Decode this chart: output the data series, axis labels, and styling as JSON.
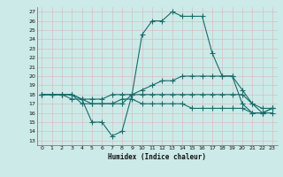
{
  "xlabel": "Humidex (Indice chaleur)",
  "background_color": "#cceae8",
  "grid_color": "#b0d8d4",
  "line_color": "#1a6b6b",
  "xlim": [
    -0.5,
    23.5
  ],
  "ylim": [
    12.5,
    27.5
  ],
  "yticks": [
    13,
    14,
    15,
    16,
    17,
    18,
    19,
    20,
    21,
    22,
    23,
    24,
    25,
    26,
    27
  ],
  "xticks": [
    0,
    1,
    2,
    3,
    4,
    5,
    6,
    7,
    8,
    9,
    10,
    11,
    12,
    13,
    14,
    15,
    16,
    17,
    18,
    19,
    20,
    21,
    22,
    23
  ],
  "line1_x": [
    0,
    1,
    2,
    3,
    4,
    5,
    6,
    7,
    8,
    9,
    10,
    11,
    12,
    13,
    14,
    15,
    16,
    17,
    18,
    19,
    20,
    21,
    22,
    23
  ],
  "line1_y": [
    18,
    18,
    18,
    18,
    17.5,
    15,
    15,
    13.5,
    14,
    18,
    24.5,
    26,
    26,
    27,
    26.5,
    26.5,
    26.5,
    22.5,
    20,
    20,
    17,
    16,
    16,
    16
  ],
  "line2_x": [
    0,
    1,
    2,
    3,
    4,
    5,
    6,
    7,
    8,
    9,
    10,
    11,
    12,
    13,
    14,
    15,
    16,
    17,
    18,
    19,
    20,
    21,
    22,
    23
  ],
  "line2_y": [
    18,
    18,
    18,
    18,
    17,
    17,
    17,
    17,
    17,
    18,
    18.5,
    19,
    19.5,
    19.5,
    20,
    20,
    20,
    20,
    20,
    20,
    18.5,
    17,
    16,
    16.5
  ],
  "line3_x": [
    0,
    1,
    2,
    3,
    4,
    5,
    6,
    7,
    8,
    9,
    10,
    11,
    12,
    13,
    14,
    15,
    16,
    17,
    18,
    19,
    20,
    21,
    22,
    23
  ],
  "line3_y": [
    18,
    18,
    18,
    18,
    17.5,
    17.5,
    17.5,
    18,
    18,
    18,
    18,
    18,
    18,
    18,
    18,
    18,
    18,
    18,
    18,
    18,
    18,
    17,
    16.5,
    16.5
  ],
  "line4_x": [
    0,
    1,
    2,
    3,
    4,
    5,
    6,
    7,
    8,
    9,
    10,
    11,
    12,
    13,
    14,
    15,
    16,
    17,
    18,
    19,
    20,
    21,
    22,
    23
  ],
  "line4_y": [
    18,
    18,
    18,
    17.5,
    17.5,
    17,
    17,
    17,
    17.5,
    17.5,
    17,
    17,
    17,
    17,
    17,
    16.5,
    16.5,
    16.5,
    16.5,
    16.5,
    16.5,
    16,
    16,
    16.5
  ]
}
